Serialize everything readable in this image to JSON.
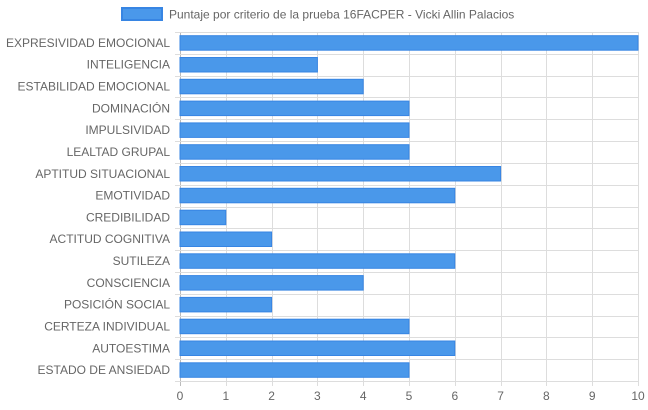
{
  "chart_data": {
    "type": "bar",
    "orientation": "horizontal",
    "legend": {
      "label": "Puntaje por criterio de la prueba 16FACPER - Vicki Allin Palacios",
      "position": "top"
    },
    "categories": [
      "EXPRESIVIDAD EMOCIONAL",
      "INTELIGENCIA",
      "ESTABILIDAD EMOCIONAL",
      "DOMINACIÓN",
      "IMPULSIVIDAD",
      "LEALTAD GRUPAL",
      "APTITUD SITUACIONAL",
      "EMOTIVIDAD",
      "CREDIBILIDAD",
      "ACTITUD COGNITIVA",
      "SUTILEZA",
      "CONSCIENCIA",
      "POSICIÓN SOCIAL",
      "CERTEZA INDIVIDUAL",
      "AUTOESTIMA",
      "ESTADO DE ANSIEDAD"
    ],
    "series": [
      {
        "name": "Puntaje por criterio de la prueba 16FACPER - Vicki Allin Palacios",
        "values": [
          10,
          3,
          4,
          5,
          5,
          5,
          7,
          6,
          1,
          2,
          6,
          4,
          2,
          5,
          6,
          5
        ]
      }
    ],
    "xlim": [
      0,
      10
    ],
    "xticks": [
      "0",
      "1",
      "2",
      "3",
      "4",
      "5",
      "6",
      "7",
      "8",
      "9",
      "10"
    ],
    "grid": true,
    "colors": {
      "bar_fill": "#4a98ea",
      "bar_stroke": "#3785e3",
      "grid": "#dddddd",
      "axis": "#bbbbbb",
      "text": "#666666"
    }
  }
}
